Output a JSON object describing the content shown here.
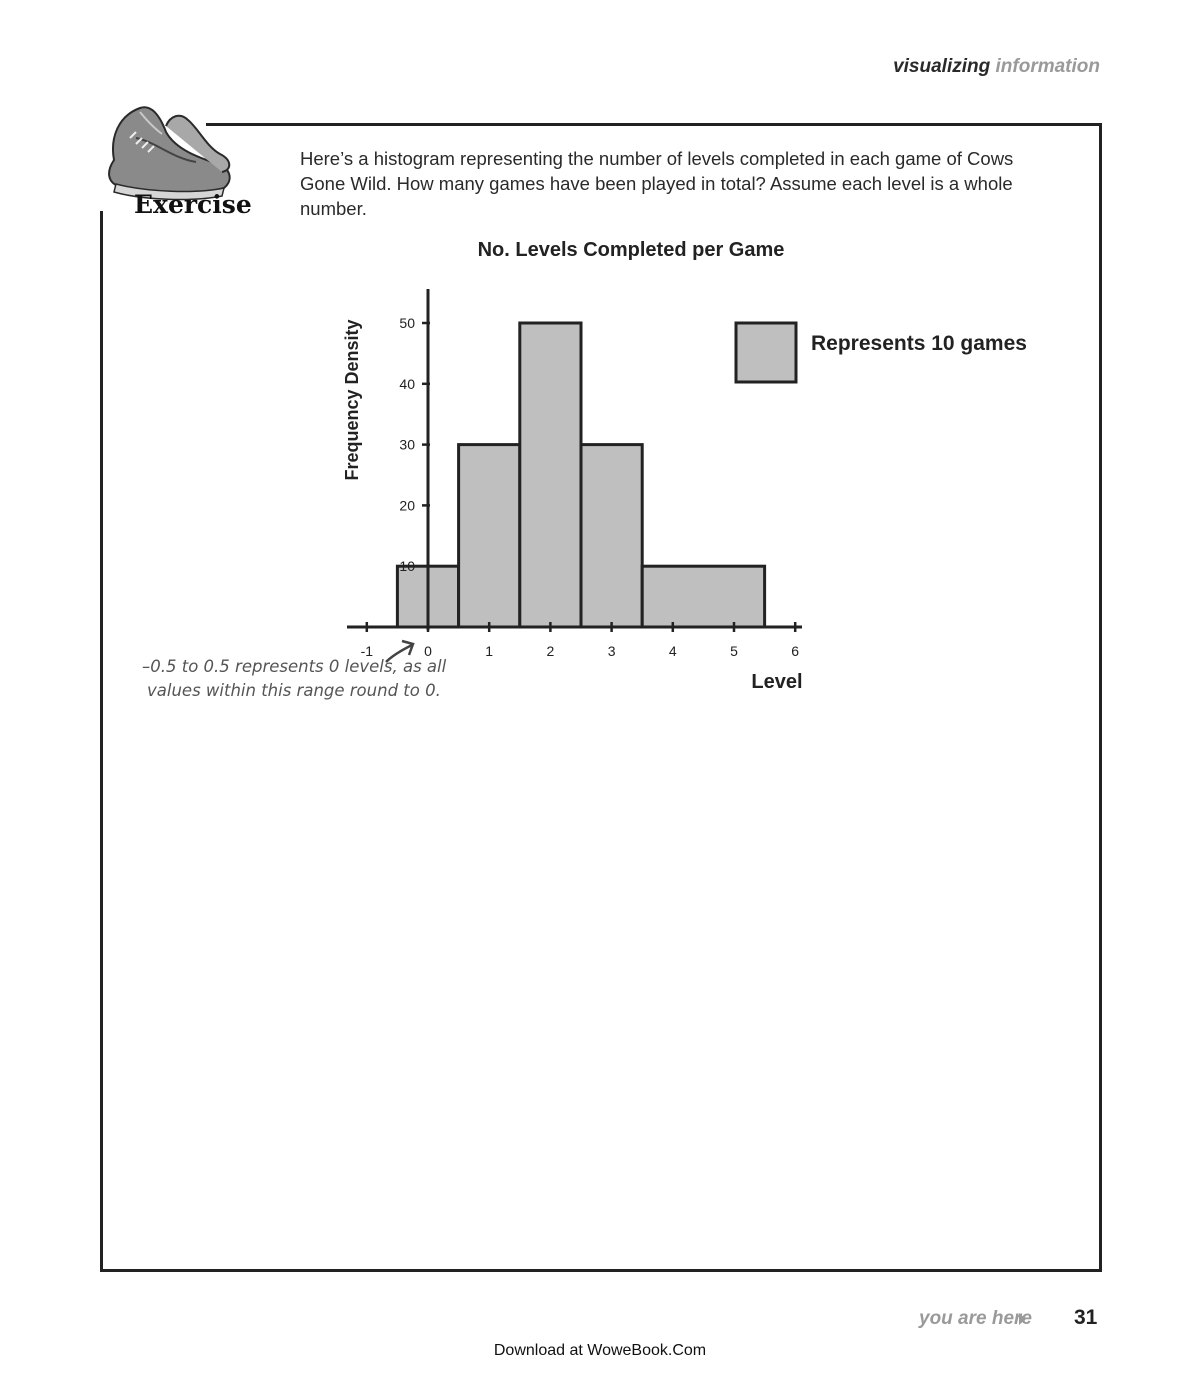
{
  "running_head": {
    "part1": "visualizing",
    "part2": "information"
  },
  "exercise": {
    "badge_label": "Exercise",
    "badge_icon": "sneakers-icon",
    "prompt": "Here’s a histogram representing the number of levels completed in each game of Cows Gone Wild. How many games have been played in total? Assume each level is a whole number."
  },
  "chart_data": {
    "type": "histogram",
    "title": "No. Levels Completed per Game",
    "xlabel": "Level",
    "ylabel": "Frequency Density",
    "xlim": [
      -1,
      6
    ],
    "ylim": [
      0,
      55
    ],
    "x_ticks": [
      "-1",
      "0",
      "1",
      "2",
      "3",
      "4",
      "5",
      "6"
    ],
    "y_ticks": [
      "10",
      "20",
      "30",
      "40",
      "50"
    ],
    "bins": [
      {
        "from": -0.5,
        "to": 0.5,
        "value": 10
      },
      {
        "from": 0.5,
        "to": 1.5,
        "value": 30
      },
      {
        "from": 1.5,
        "to": 2.5,
        "value": 50
      },
      {
        "from": 2.5,
        "to": 3.5,
        "value": 30
      },
      {
        "from": 3.5,
        "to": 5.5,
        "value": 10
      }
    ],
    "bar_color": "#bfbfbf",
    "legend": {
      "label": "Represents 10 games",
      "placement": "top-right"
    },
    "annotation": "–0.5 to 0.5 represents 0 levels, as all values within this range round to 0."
  },
  "footer": {
    "you_are_here": "you are here",
    "page_number": "31",
    "download": "Download at WoweBook.Com"
  }
}
